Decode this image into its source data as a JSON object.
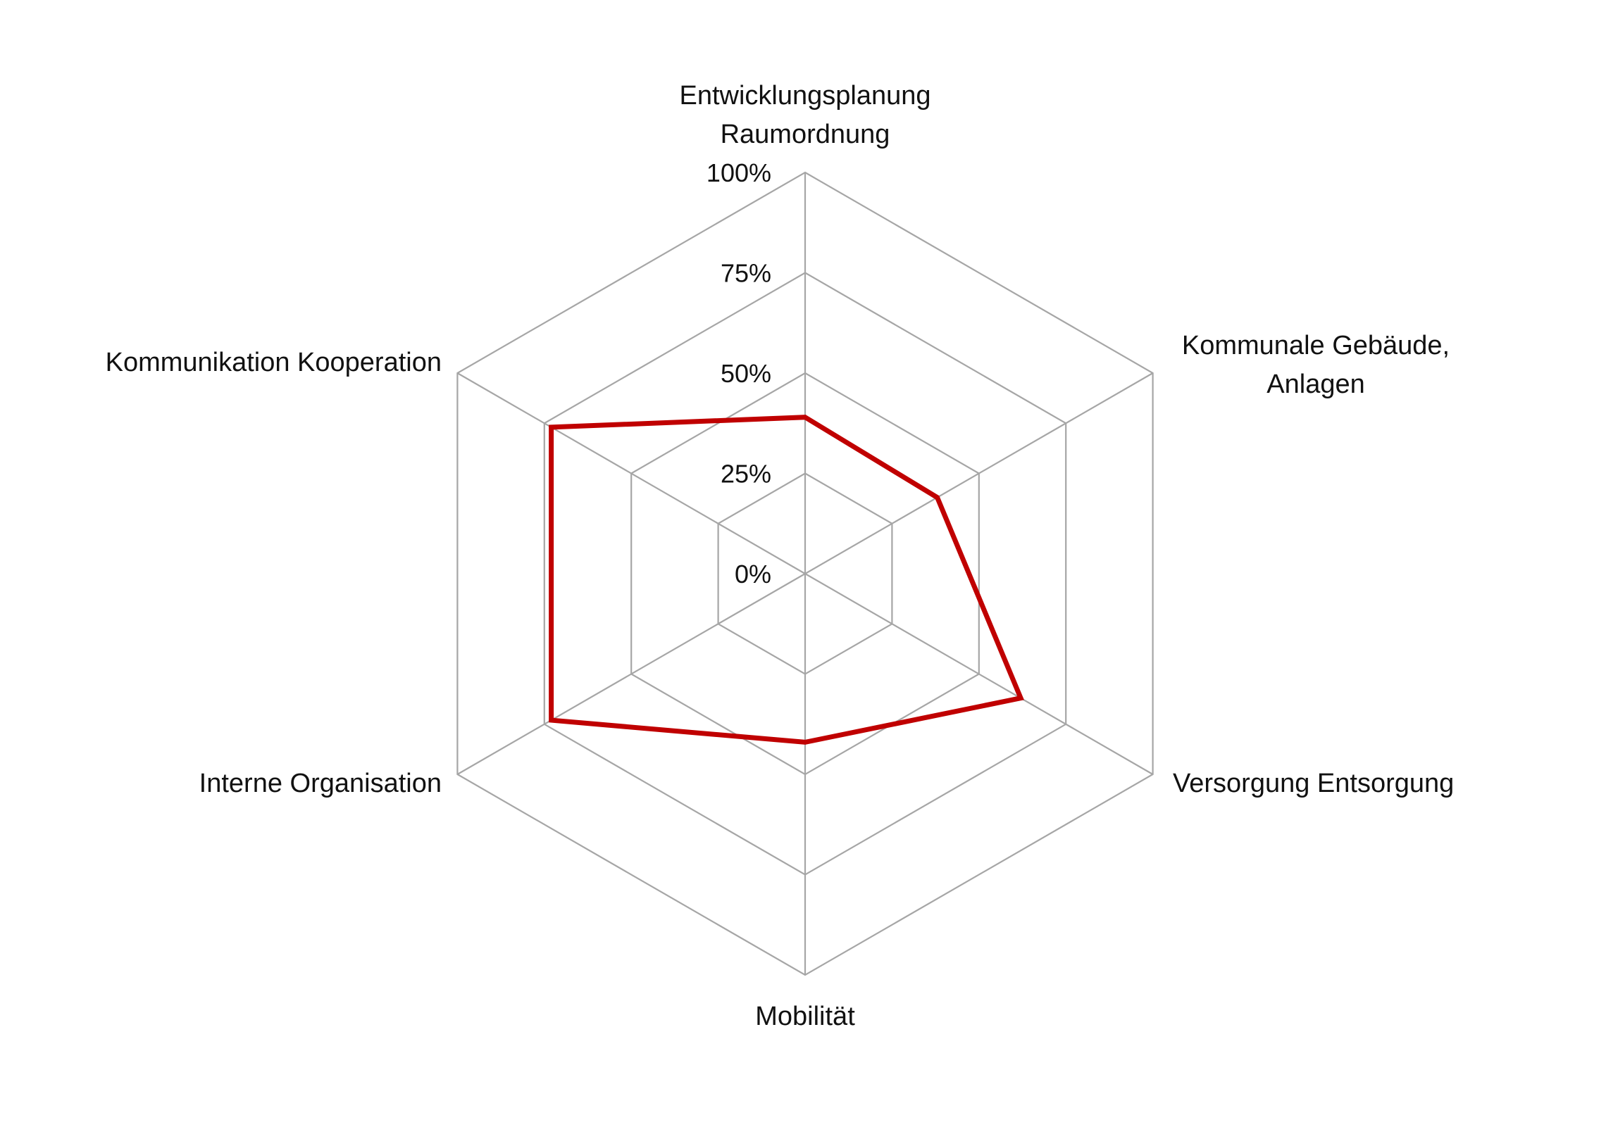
{
  "chart_data": {
    "type": "radar",
    "categories": [
      [
        "Entwicklungsplanung",
        "Raumordnung"
      ],
      [
        "Kommunale Gebäude,",
        "Anlagen"
      ],
      [
        "Versorgung Entsorgung"
      ],
      [
        "Mobilität"
      ],
      [
        "Interne Organisation"
      ],
      [
        "Kommunikation Kooperation"
      ]
    ],
    "tick_labels": [
      "0%",
      "25%",
      "50%",
      "75%",
      "100%"
    ],
    "ticks": [
      0,
      25,
      50,
      75,
      100
    ],
    "range": [
      0,
      100
    ],
    "series": [
      {
        "values": [
          39,
          38,
          62,
          42,
          73,
          73
        ],
        "color": "#c00000"
      }
    ],
    "grid_color": "#a6a6a6",
    "grid": true,
    "legend": "none"
  }
}
